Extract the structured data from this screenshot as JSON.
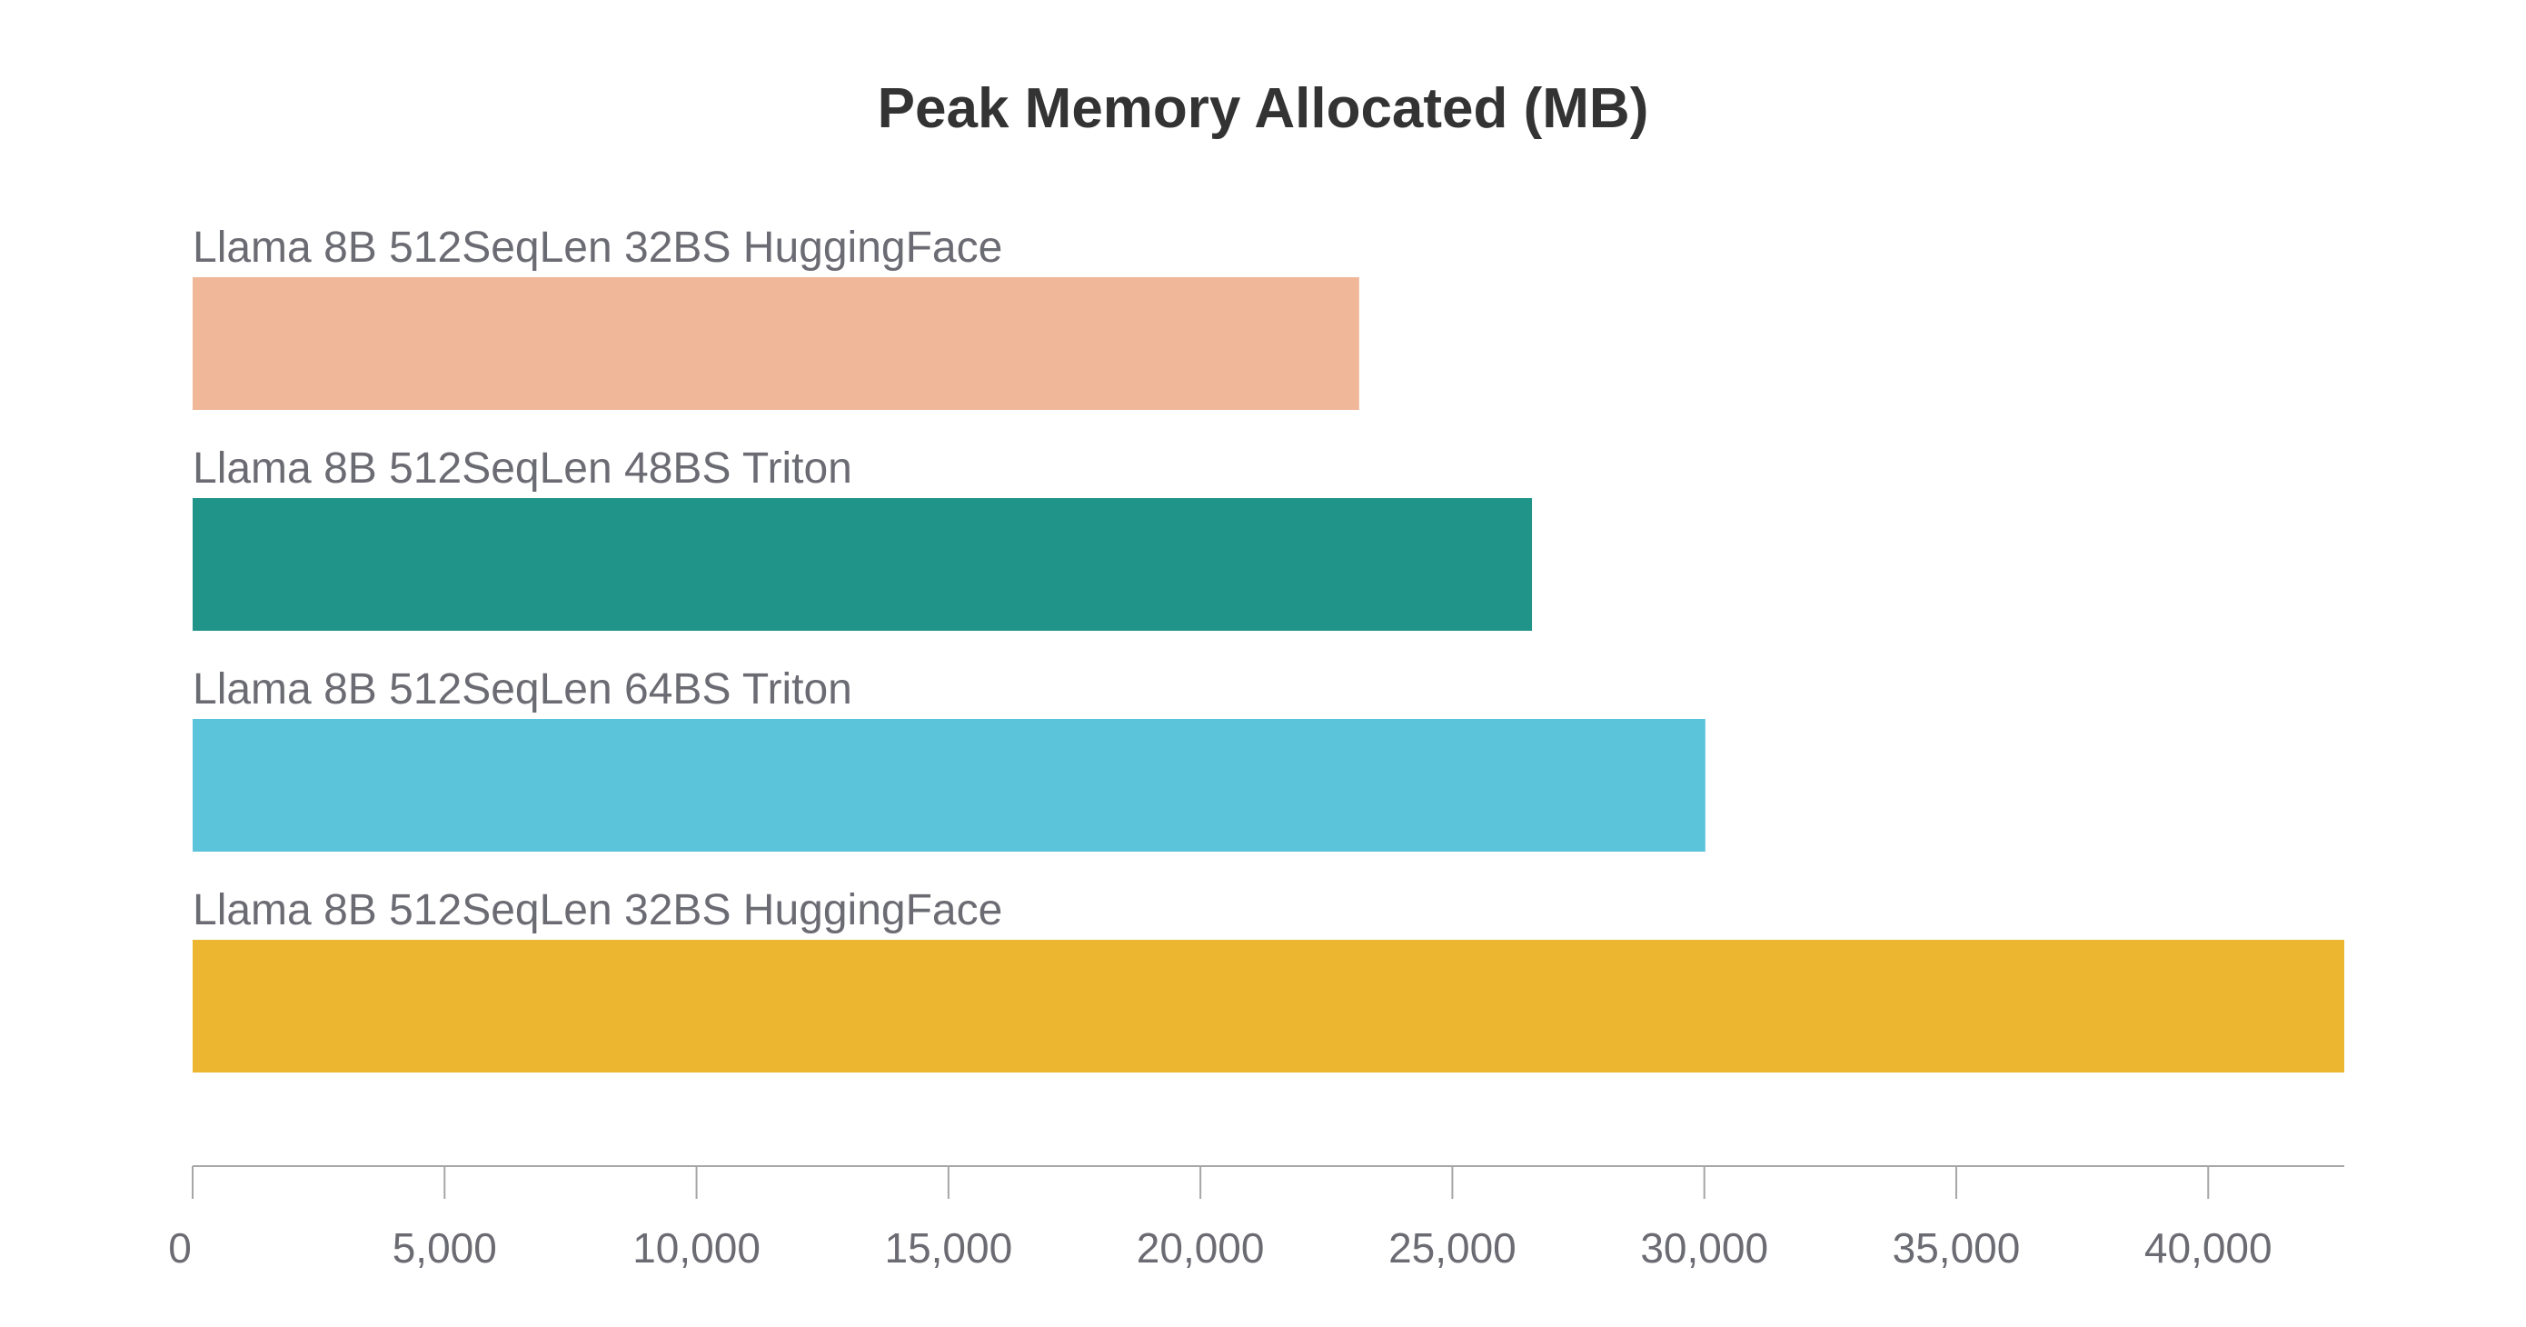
{
  "chart_data": {
    "type": "bar",
    "orientation": "horizontal",
    "title": "Peak Memory Allocated (MB)",
    "xlabel": "",
    "ylabel": "",
    "categories": [
      "Llama 8B 512SeqLen 32BS HuggingFace",
      "Llama 8B 512SeqLen 48BS Triton",
      "Llama 8B 512SeqLen 64BS Triton",
      "Llama 8B 512SeqLen 32BS HuggingFace"
    ],
    "values": [
      23150,
      26580,
      30020,
      42700
    ],
    "colors": [
      "#f0b799",
      "#21948a",
      "#5bc4db",
      "#ecb631"
    ],
    "xlim": [
      0,
      42700
    ],
    "ticks": [
      0,
      5000,
      10000,
      15000,
      20000,
      25000,
      30000,
      35000,
      40000
    ],
    "tick_labels": [
      "0",
      "5,000",
      "10,000",
      "15,000",
      "20,000",
      "25,000",
      "30,000",
      "35,000",
      "40,000"
    ],
    "grid": false,
    "legend": "none"
  }
}
